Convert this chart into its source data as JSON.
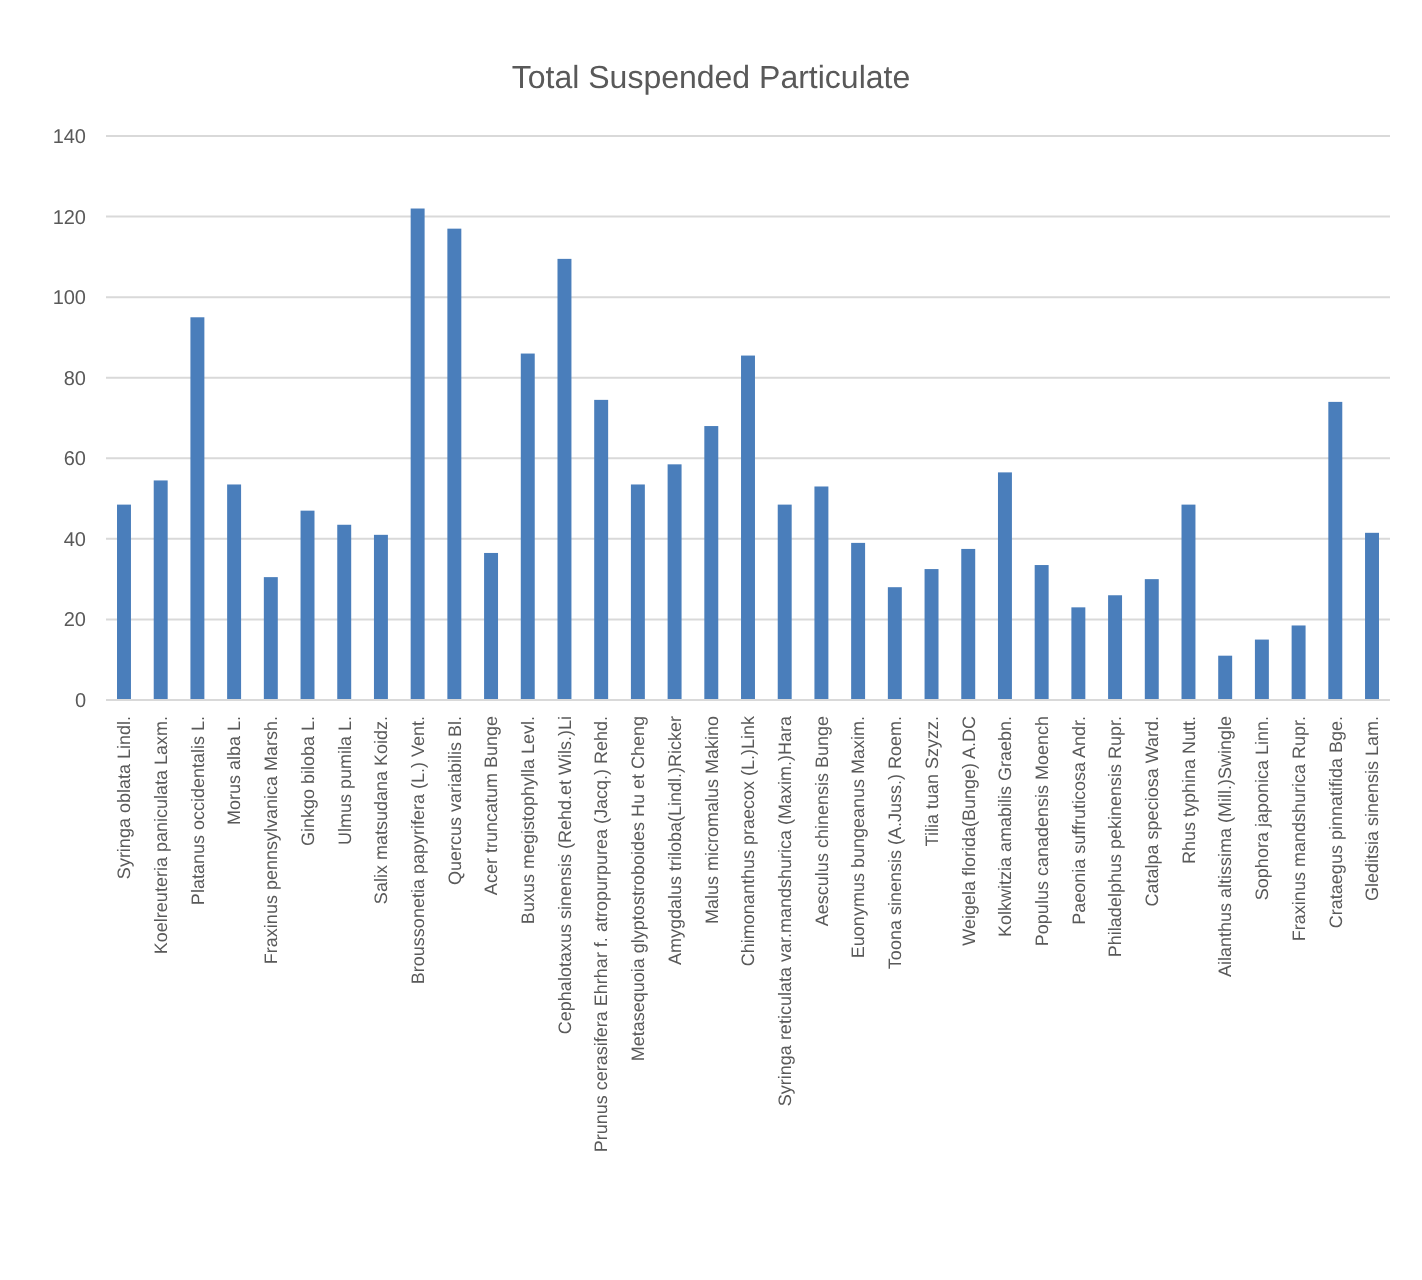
{
  "chart_data": {
    "type": "bar",
    "title": "Total Suspended Particulate",
    "categories": [
      "Syringa oblata Lindl.",
      "Koelreuteria paniculata Laxm.",
      "Platanus occidentalis L.",
      "Morus alba L.",
      "Fraxinus pennsylvanica Marsh.",
      "Ginkgo biloba L.",
      "Ulmus pumila L.",
      "Salix matsudana Koidz.",
      "Broussonetia papyrifera (L.) Vent.",
      "Quercus variabilis Bl.",
      "Acer truncatum Bunge",
      "Buxus megistophylla Levl.",
      "Cephalotaxus sinensis (Rehd.et Wils.)Li",
      "Prunus cerasifera Ehrhar f. atropurpurea (Jacq.) Rehd.",
      "Metasequoia glyptostroboides Hu et Cheng",
      "Amygdalus triloba(Lindl.)Ricker",
      "Malus micromalus Makino",
      "Chimonanthus praecox (L.)Link",
      "Syringa reticulata var.mandshurica (Maxim.)Hara",
      "Aesculus chinensis Bunge",
      "Euonymus bungeanus Maxim.",
      "Toona sinensis (A.Juss.) Roem.",
      "Tilia tuan Szyzz.",
      "Weigela florida(Bunge) A.DC",
      "Kolkwitzia amabilis Graebn.",
      "Populus canadensis Moench",
      "Paeonia suffruticosa Andr.",
      "Philadelphus pekinensis Rupr.",
      "Catalpa speciosa Ward.",
      "Rhus typhina Nutt.",
      "Ailanthus altissima (Mill.)Swingle",
      "Sophora japonica Linn.",
      "Fraxinus mandshurica Rupr.",
      "Crataegus pinnatifida Bge.",
      "Gleditsia sinensis Lam."
    ],
    "values": [
      48.5,
      54.5,
      95,
      53.5,
      30.5,
      47,
      43.5,
      41,
      122,
      117,
      36.5,
      86,
      109.5,
      74.5,
      53.5,
      58.5,
      68,
      85.5,
      48.5,
      53,
      39,
      28,
      32.5,
      37.5,
      56.5,
      33.5,
      23,
      26,
      30,
      48.5,
      11,
      15,
      18.5,
      74,
      41.5
    ],
    "color": "#4a7ebb",
    "ylim": [
      0,
      140
    ],
    "yticks": [
      0,
      20,
      40,
      60,
      80,
      100,
      120,
      140
    ],
    "grid": "y"
  }
}
